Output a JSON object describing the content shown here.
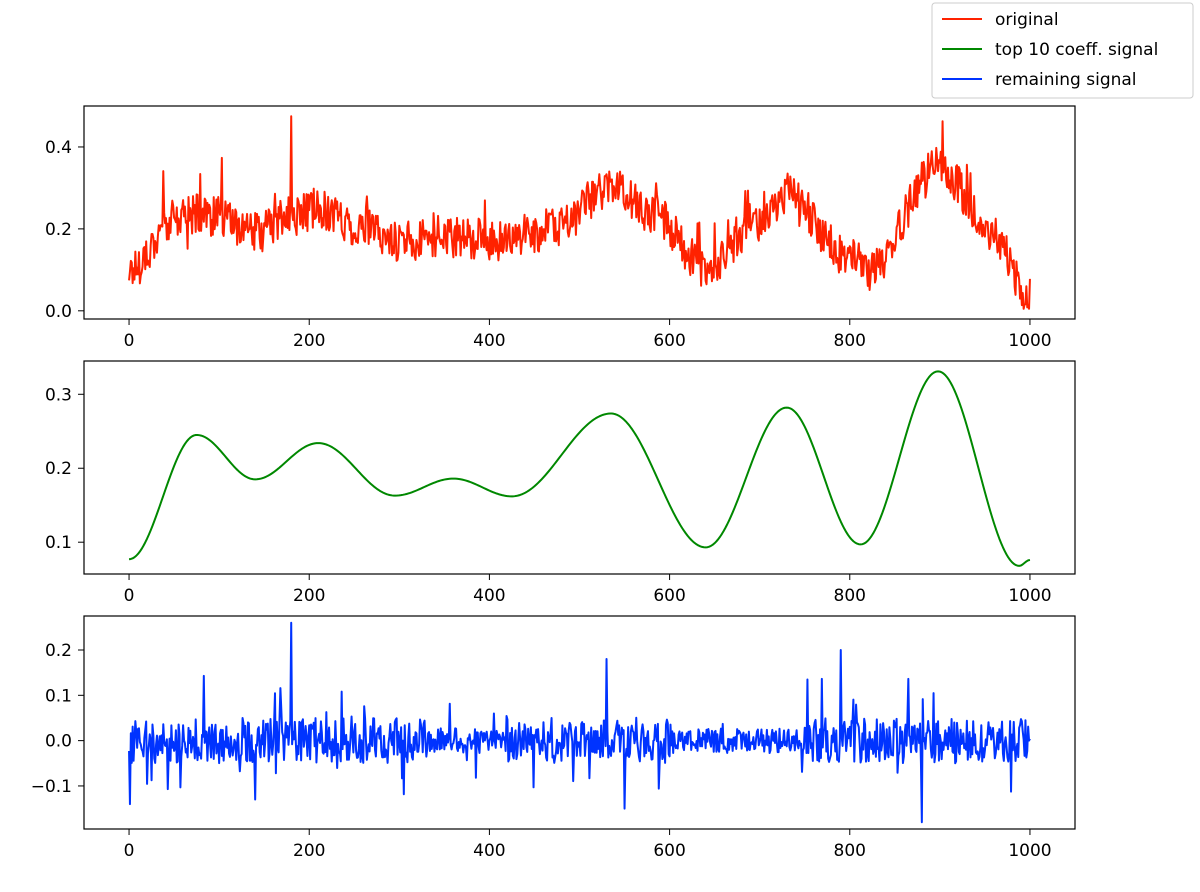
{
  "legend": {
    "entries": [
      {
        "label": "original",
        "color": "#ff2200"
      },
      {
        "label": "top 10 coeff. signal",
        "color": "#008800"
      },
      {
        "label": "remaining signal",
        "color": "#0033ff"
      }
    ]
  },
  "chart_data": [
    {
      "type": "line",
      "name": "original",
      "color": "#ff2200",
      "xlim": [
        -50,
        1050
      ],
      "ylim": [
        -0.02,
        0.5
      ],
      "xticks": [
        0,
        200,
        400,
        600,
        800,
        1000
      ],
      "yticks": [
        0.0,
        0.2,
        0.4
      ],
      "ytick_labels": [
        "0.0",
        "0.2",
        "0.4"
      ],
      "x": [
        0,
        50,
        75,
        100,
        140,
        180,
        210,
        260,
        300,
        360,
        420,
        470,
        535,
        580,
        640,
        700,
        730,
        800,
        820,
        900,
        960,
        1000
      ],
      "y": [
        0.1,
        0.22,
        0.24,
        0.23,
        0.19,
        0.23,
        0.25,
        0.2,
        0.17,
        0.18,
        0.17,
        0.2,
        0.3,
        0.24,
        0.1,
        0.22,
        0.28,
        0.13,
        0.1,
        0.35,
        0.18,
        0.03
      ],
      "noise_amplitude": 0.05
    },
    {
      "type": "line",
      "name": "top 10 coeff. signal",
      "color": "#008800",
      "xlim": [
        -50,
        1050
      ],
      "ylim": [
        0.057,
        0.345
      ],
      "xticks": [
        0,
        200,
        400,
        600,
        800,
        1000
      ],
      "yticks": [
        0.1,
        0.2,
        0.3
      ],
      "ytick_labels": [
        "0.1",
        "0.2",
        "0.3"
      ],
      "x": [
        0,
        75,
        140,
        210,
        295,
        360,
        425,
        535,
        640,
        730,
        812,
        898,
        988,
        1000
      ],
      "y": [
        0.077,
        0.245,
        0.185,
        0.234,
        0.163,
        0.186,
        0.162,
        0.274,
        0.093,
        0.282,
        0.097,
        0.331,
        0.068,
        0.076
      ]
    },
    {
      "type": "line",
      "name": "remaining signal",
      "color": "#0033ff",
      "xlim": [
        -50,
        1050
      ],
      "ylim": [
        -0.195,
        0.275
      ],
      "xticks": [
        0,
        200,
        400,
        600,
        800,
        1000
      ],
      "yticks": [
        -0.1,
        0.0,
        0.1,
        0.2
      ],
      "ytick_labels": [
        "−0.1",
        "0.0",
        "0.1",
        "0.2"
      ],
      "noise_amplitude": 0.05,
      "peaks": [
        {
          "x": 140,
          "y": -0.13
        },
        {
          "x": 180,
          "y": 0.26
        },
        {
          "x": 530,
          "y": 0.18
        },
        {
          "x": 550,
          "y": -0.15
        },
        {
          "x": 790,
          "y": 0.2
        },
        {
          "x": 880,
          "y": -0.18
        }
      ]
    }
  ]
}
